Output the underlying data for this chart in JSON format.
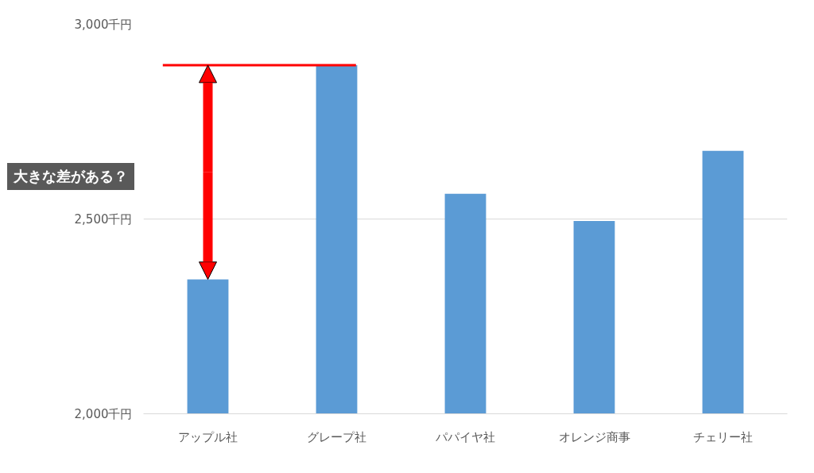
{
  "chart_data": {
    "type": "bar",
    "categories": [
      "アップル社",
      "グレープ社",
      "パパイヤ社",
      "オレンジ商事",
      "チェリー社"
    ],
    "values": [
      2345,
      2895,
      2565,
      2495,
      2675
    ],
    "color": "#5b9bd5",
    "ylim": [
      2000,
      3000
    ],
    "yticks": [
      {
        "value": 2000,
        "label": "2,000千円"
      },
      {
        "value": 2500,
        "label": "2,500千円"
      },
      {
        "value": 3000,
        "label": "3,000千円"
      }
    ],
    "grid": "y",
    "ref_lines": [
      {
        "axis": "y",
        "value": 2895,
        "color": "#ff0000"
      }
    ],
    "annotations": [
      "大きな差がある？"
    ]
  }
}
